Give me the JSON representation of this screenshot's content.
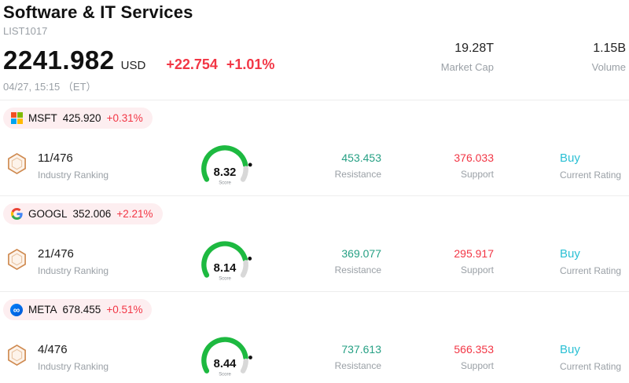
{
  "header": {
    "title": "Software & IT Services",
    "subtitle": "LIST1017",
    "price": "2241.982",
    "currency": "USD",
    "change": "+22.754",
    "change_pct": "+1.01%",
    "datetime": "04/27, 15:15 （ET）",
    "market_cap_value": "19.28T",
    "market_cap_label": "Market Cap",
    "volume_value": "1.15B",
    "volume_label": "Volume"
  },
  "labels": {
    "industry_ranking": "Industry Ranking",
    "score": "Score",
    "resistance": "Resistance",
    "support": "Support",
    "current_rating": "Current Rating"
  },
  "colors": {
    "change_red": "#f23645",
    "resistance_teal": "#26a084",
    "support_red": "#f23645",
    "rating_cyan": "#2bc0d4",
    "gauge_green": "#1db940",
    "gauge_gray": "#d8d8d8",
    "badge_bg": "#fdeef0"
  },
  "stocks": [
    {
      "ticker": "MSFT",
      "price": "425.920",
      "change_pct": "+0.31%",
      "rank": "11/476",
      "score": "8.32",
      "resistance": "453.453",
      "support": "376.033",
      "rating": "Buy"
    },
    {
      "ticker": "GOOGL",
      "price": "352.006",
      "change_pct": "+2.21%",
      "rank": "21/476",
      "score": "8.14",
      "resistance": "369.077",
      "support": "295.917",
      "rating": "Buy"
    },
    {
      "ticker": "META",
      "price": "678.455",
      "change_pct": "+0.51%",
      "rank": "4/476",
      "score": "8.44",
      "resistance": "737.613",
      "support": "566.353",
      "rating": "Buy"
    }
  ]
}
